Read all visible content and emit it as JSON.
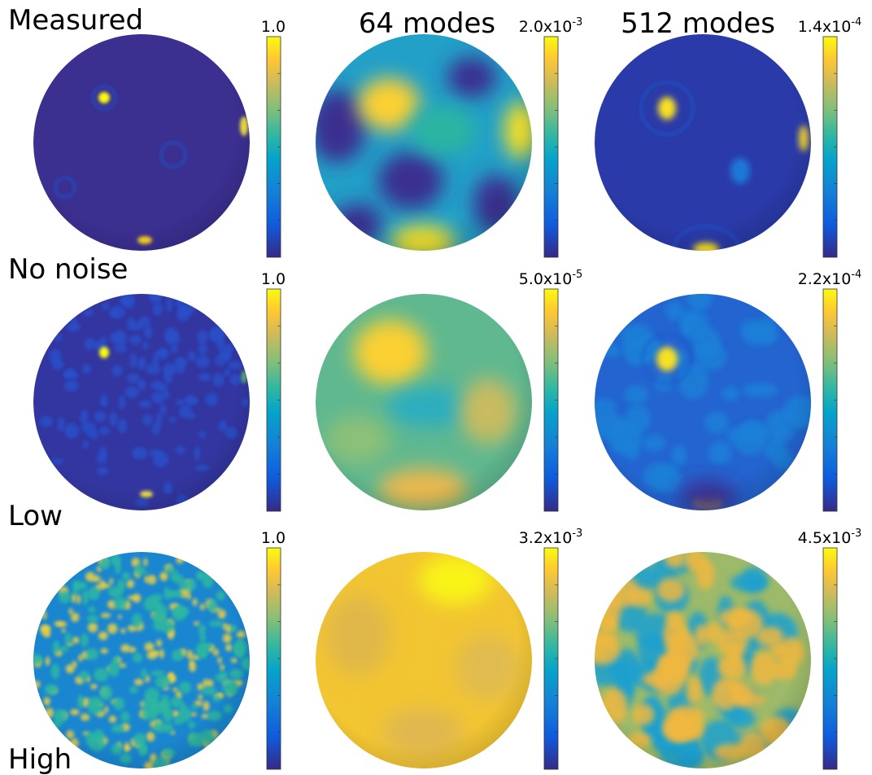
{
  "column_headers": [
    "Measured",
    "64 modes",
    "512 modes"
  ],
  "noise_levels": [
    "No noise",
    "Low",
    "High"
  ],
  "colorbar_max": [
    [
      {
        "text": "1.0"
      },
      {
        "text": "2.0x10",
        "exponent": "-3"
      },
      {
        "text": "1.4x10",
        "exponent": "-4"
      }
    ],
    [
      {
        "text": "1.0"
      },
      {
        "text": "5.0x10",
        "exponent": "-5"
      },
      {
        "text": "2.2x10",
        "exponent": "-4"
      }
    ],
    [
      {
        "text": "1.0"
      },
      {
        "text": "3.2x10",
        "exponent": "-3"
      },
      {
        "text": "4.5x10",
        "exponent": "-3"
      }
    ]
  ]
}
